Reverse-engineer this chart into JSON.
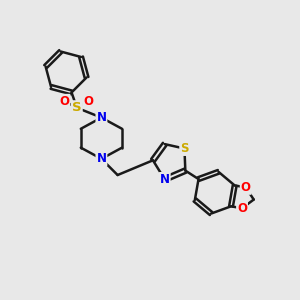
{
  "background_color": "#e8e8e8",
  "bond_color": "#1a1a1a",
  "bond_width": 1.8,
  "atom_colors": {
    "N": "#0000ee",
    "S": "#ccaa00",
    "O": "#ff0000",
    "C": "#1a1a1a"
  },
  "font_size_atom": 8.5,
  "title": "",
  "figsize": [
    3.0,
    3.0
  ],
  "dpi": 100,
  "xlim": [
    0,
    10
  ],
  "ylim": [
    0,
    10
  ]
}
